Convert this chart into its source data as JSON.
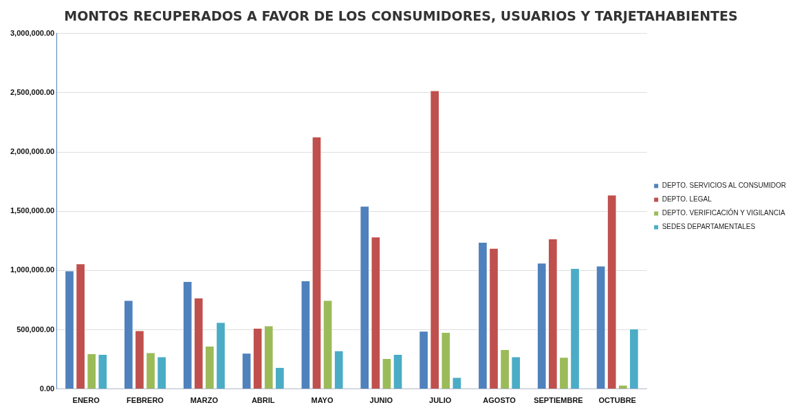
{
  "chart_data": {
    "type": "bar",
    "title": "MONTOS RECUPERADOS A FAVOR DE LOS CONSUMIDORES, USUARIOS Y TARJETAHABIENTES",
    "categories": [
      "ENERO",
      "FEBRERO",
      "MARZO",
      "ABRIL",
      "MAYO",
      "JUNIO",
      "JULIO",
      "AGOSTO",
      "SEPTIEMBRE",
      "OCTUBRE"
    ],
    "series": [
      {
        "name": "DEPTO. SERVICIOS AL CONSUMIDOR",
        "color": "#4f81bd",
        "values": [
          1000000,
          750000,
          910000,
          305000,
          915000,
          1545000,
          490000,
          1240000,
          1065000,
          1040000
        ]
      },
      {
        "name": "DEPTO. LEGAL",
        "color": "#c0504d",
        "values": [
          1060000,
          495000,
          770000,
          515000,
          2130000,
          1285000,
          2520000,
          1190000,
          1270000,
          1640000
        ]
      },
      {
        "name": "DEPTO. VERIFICACIÓN Y VIGILANCIA",
        "color": "#9bbb59",
        "values": [
          300000,
          310000,
          365000,
          535000,
          750000,
          260000,
          480000,
          335000,
          270000,
          35000
        ]
      },
      {
        "name": "SEDES DEPARTAMENTALES",
        "color": "#4bacc6",
        "values": [
          295000,
          275000,
          565000,
          185000,
          325000,
          295000,
          100000,
          275000,
          1020000,
          510000
        ]
      }
    ],
    "ylim": [
      0,
      3000000
    ],
    "yticks": [
      {
        "value": 0,
        "label": "0.00"
      },
      {
        "value": 500000,
        "label": "500,000.00"
      },
      {
        "value": 1000000,
        "label": "1,000,000.00"
      },
      {
        "value": 1500000,
        "label": "1,500,000.00"
      },
      {
        "value": 2000000,
        "label": "2,000,000.00"
      },
      {
        "value": 2500000,
        "label": "2,500,000.00"
      },
      {
        "value": 3000000,
        "label": "3,000,000.00"
      }
    ],
    "grid": "y",
    "legend": "right"
  }
}
